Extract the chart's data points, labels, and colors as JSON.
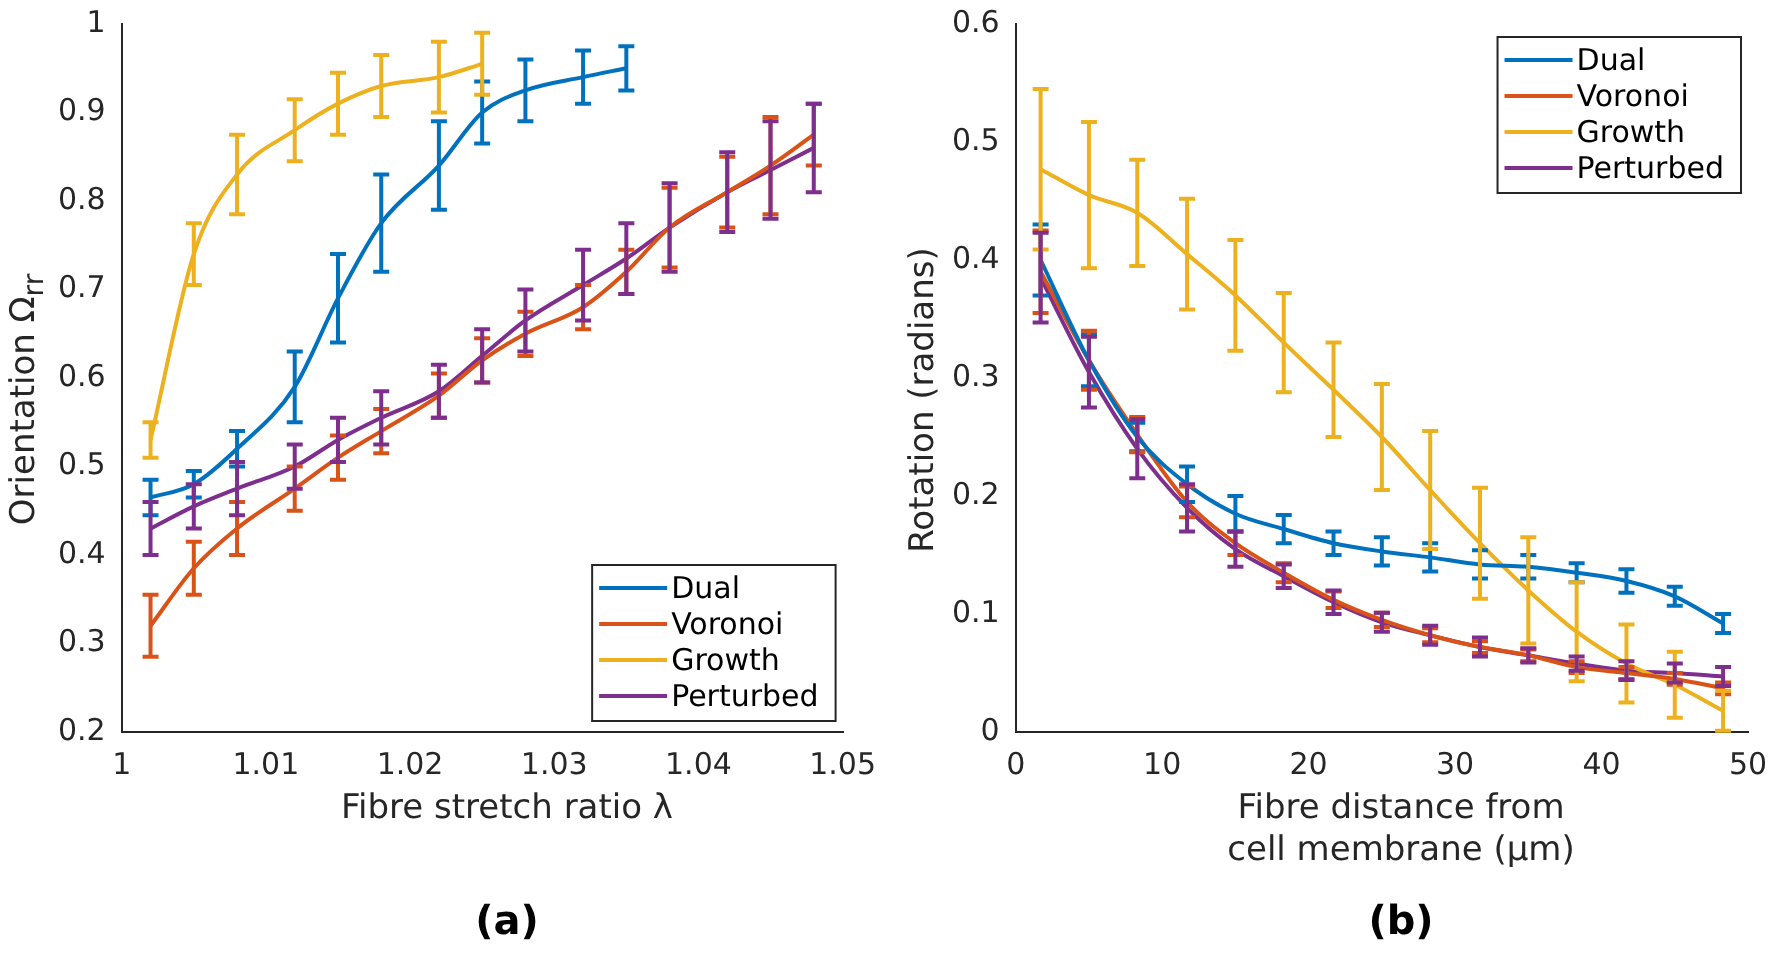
{
  "chart_data": [
    {
      "type": "line",
      "xlabel": "Fibre stretch ratio λ",
      "ylabel": "Orientation Ω$_{rr}$",
      "annotations": [
        "(a)"
      ],
      "legend": "bottom right",
      "grid": false,
      "marker": "none",
      "line_style": "solid",
      "xlim": [
        1,
        1.05
      ],
      "xticks": [
        1,
        1.01,
        1.02,
        1.03,
        1.04,
        1.05
      ],
      "ylim": [
        0.2,
        1
      ],
      "yticks": [
        0.2,
        0.3,
        0.4,
        0.5,
        0.6,
        0.7,
        0.8,
        0.9,
        1
      ],
      "series": [
        {
          "name": "Dual",
          "color": "#0072bd",
          "x": [
            1.002,
            1.005,
            1.008,
            1.012,
            1.015,
            1.018,
            1.022,
            1.025,
            1.028,
            1.032,
            1.035
          ],
          "values": [
            0.465,
            0.48,
            0.52,
            0.59,
            0.69,
            0.775,
            0.84,
            0.9,
            0.925,
            0.94,
            0.95
          ],
          "errors": [
            0.02,
            0.015,
            0.02,
            0.04,
            0.05,
            0.055,
            0.05,
            0.035,
            0.035,
            0.03,
            0.025
          ]
        },
        {
          "name": "Voronoi",
          "color": "#d95319",
          "x": [
            1.002,
            1.005,
            1.008,
            1.012,
            1.015,
            1.018,
            1.022,
            1.025,
            1.028,
            1.032,
            1.035,
            1.038,
            1.042,
            1.045,
            1.048
          ],
          "values": [
            0.32,
            0.385,
            0.43,
            0.475,
            0.51,
            0.54,
            0.58,
            0.62,
            0.65,
            0.68,
            0.72,
            0.77,
            0.81,
            0.84,
            0.875
          ],
          "errors": [
            0.035,
            0.03,
            0.03,
            0.025,
            0.025,
            0.025,
            0.025,
            0.025,
            0.025,
            0.025,
            0.025,
            0.045,
            0.04,
            0.055,
            0.035
          ]
        },
        {
          "name": "Growth",
          "color": "#edb120",
          "x": [
            1.002,
            1.005,
            1.008,
            1.012,
            1.015,
            1.018,
            1.022,
            1.025
          ],
          "values": [
            0.53,
            0.74,
            0.83,
            0.88,
            0.91,
            0.93,
            0.94,
            0.955
          ],
          "errors": [
            0.02,
            0.035,
            0.045,
            0.035,
            0.035,
            0.035,
            0.04,
            0.035
          ]
        },
        {
          "name": "Perturbed",
          "color": "#7e2f8e",
          "x": [
            1.002,
            1.005,
            1.008,
            1.012,
            1.015,
            1.018,
            1.022,
            1.025,
            1.028,
            1.032,
            1.035,
            1.038,
            1.042,
            1.045,
            1.048
          ],
          "values": [
            0.43,
            0.455,
            0.475,
            0.5,
            0.53,
            0.555,
            0.585,
            0.625,
            0.665,
            0.705,
            0.735,
            0.77,
            0.81,
            0.835,
            0.86
          ],
          "errors": [
            0.03,
            0.025,
            0.03,
            0.025,
            0.025,
            0.03,
            0.03,
            0.03,
            0.035,
            0.04,
            0.04,
            0.05,
            0.045,
            0.055,
            0.05
          ]
        }
      ]
    },
    {
      "type": "line",
      "xlabel": "Fibre distance from\ncell membrane (µm)",
      "ylabel": "Rotation (radians)",
      "annotations": [
        "(b)"
      ],
      "legend": "top right",
      "grid": false,
      "line_style": "solid",
      "xlim": [
        0,
        50
      ],
      "xticks": [
        0,
        10,
        20,
        30,
        40,
        50
      ],
      "ylim": [
        0,
        0.6
      ],
      "yticks": [
        0,
        0.1,
        0.2,
        0.3,
        0.4,
        0.5,
        0.6
      ],
      "series": [
        {
          "name": "Dual",
          "color": "#0072bd",
          "x": [
            1.7,
            5,
            8.3,
            11.7,
            15,
            18.3,
            21.7,
            25,
            28.3,
            31.7,
            35,
            38.3,
            41.7,
            45,
            48.3
          ],
          "values": [
            0.4,
            0.315,
            0.25,
            0.21,
            0.185,
            0.172,
            0.16,
            0.153,
            0.148,
            0.142,
            0.14,
            0.135,
            0.128,
            0.115,
            0.092
          ],
          "errors": [
            0.03,
            0.022,
            0.012,
            0.015,
            0.015,
            0.012,
            0.01,
            0.012,
            0.012,
            0.012,
            0.01,
            0.008,
            0.01,
            0.008,
            0.008
          ]
        },
        {
          "name": "Voronoi",
          "color": "#d95319",
          "x": [
            1.7,
            5,
            8.3,
            11.7,
            15,
            18.3,
            21.7,
            25,
            28.3,
            31.7,
            35,
            38.3,
            41.7,
            45,
            48.3
          ],
          "values": [
            0.39,
            0.315,
            0.252,
            0.195,
            0.16,
            0.135,
            0.112,
            0.095,
            0.082,
            0.072,
            0.065,
            0.055,
            0.05,
            0.045,
            0.037
          ],
          "errors": [
            0.035,
            0.025,
            0.015,
            0.013,
            0.01,
            0.008,
            0.007,
            0.006,
            0.006,
            0.005,
            0.005,
            0.005,
            0.005,
            0.005,
            0.005
          ]
        },
        {
          "name": "Growth",
          "color": "#edb120",
          "x": [
            1.7,
            5,
            8.3,
            11.7,
            15,
            18.3,
            21.7,
            25,
            28.3,
            31.7,
            35,
            38.3,
            41.7,
            45,
            48.3
          ],
          "values": [
            0.477,
            0.455,
            0.44,
            0.405,
            0.37,
            0.33,
            0.29,
            0.25,
            0.205,
            0.16,
            0.12,
            0.085,
            0.058,
            0.04,
            0.018
          ],
          "errors": [
            0.068,
            0.062,
            0.045,
            0.047,
            0.047,
            0.042,
            0.04,
            0.045,
            0.05,
            0.047,
            0.045,
            0.042,
            0.033,
            0.028,
            0.017
          ]
        },
        {
          "name": "Perturbed",
          "color": "#7e2f8e",
          "x": [
            1.7,
            5,
            8.3,
            11.7,
            15,
            18.3,
            21.7,
            25,
            28.3,
            31.7,
            35,
            38.3,
            41.7,
            45,
            48.3
          ],
          "values": [
            0.385,
            0.305,
            0.24,
            0.19,
            0.155,
            0.132,
            0.11,
            0.093,
            0.082,
            0.072,
            0.065,
            0.058,
            0.052,
            0.05,
            0.047
          ],
          "errors": [
            0.038,
            0.03,
            0.025,
            0.02,
            0.015,
            0.01,
            0.01,
            0.008,
            0.008,
            0.008,
            0.006,
            0.006,
            0.008,
            0.008,
            0.008
          ]
        }
      ]
    }
  ]
}
